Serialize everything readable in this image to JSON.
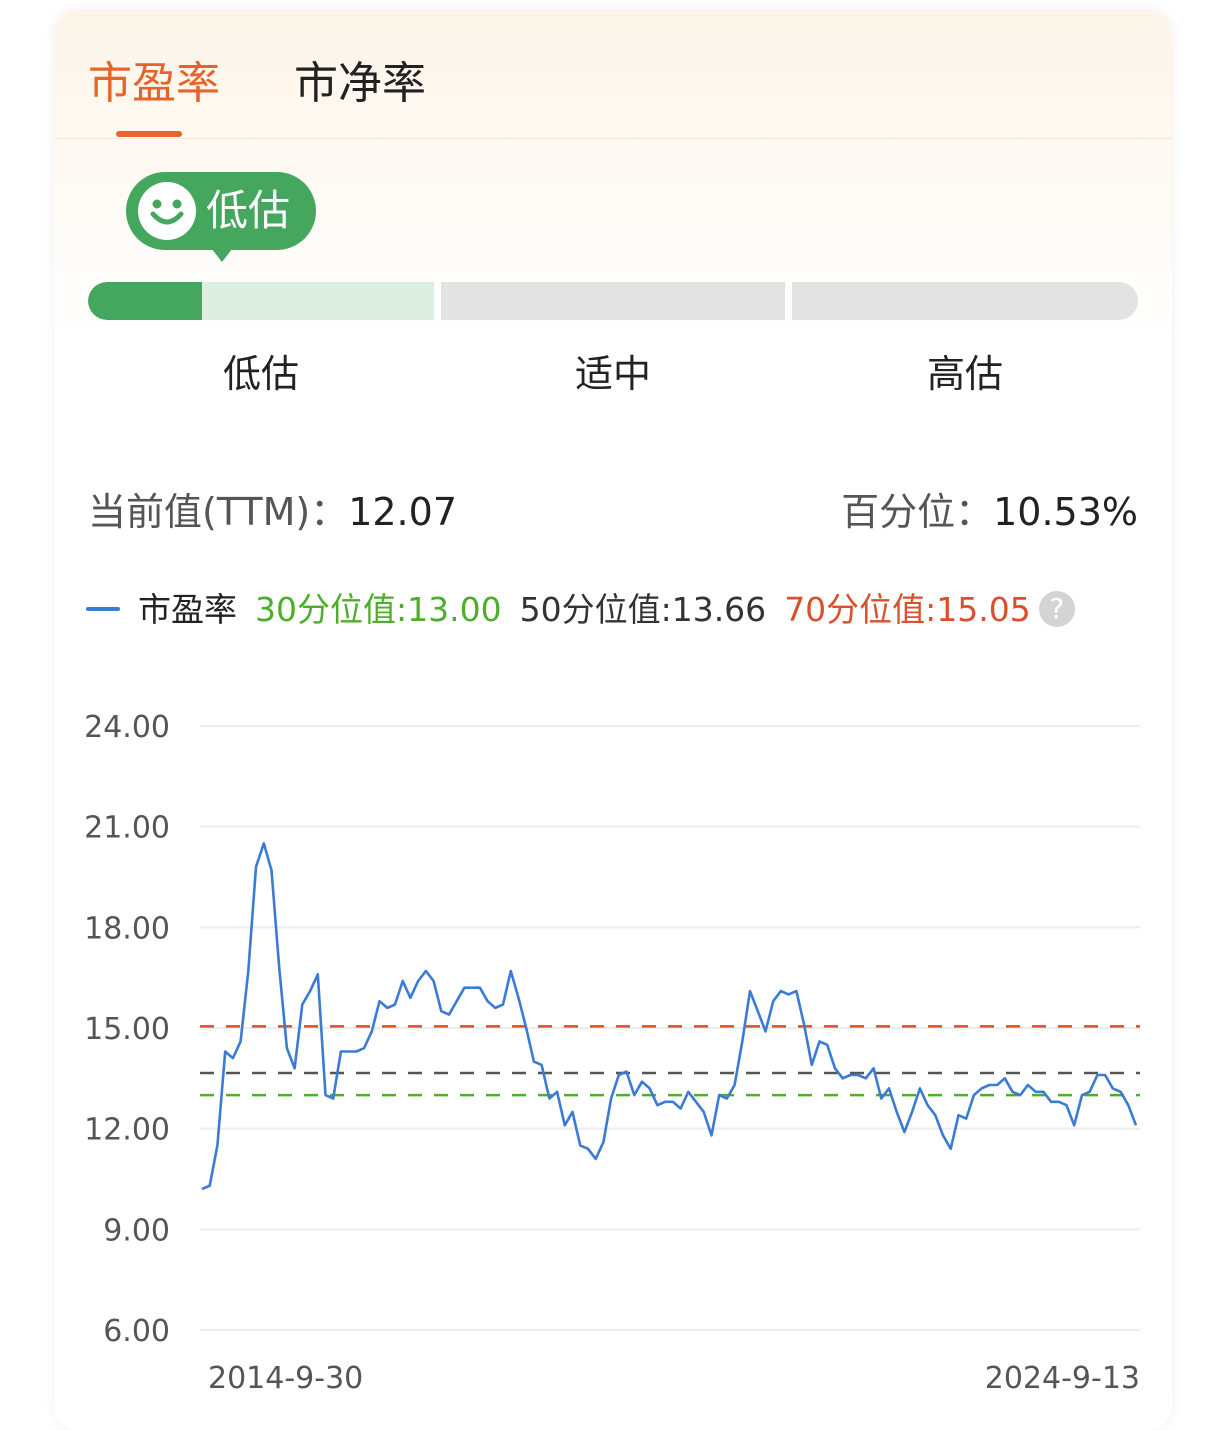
{
  "tabs": [
    {
      "label": "市盈率",
      "active": true
    },
    {
      "label": "市净率",
      "active": false
    }
  ],
  "valuation_badge": {
    "label": "低估",
    "icon": "smiley-icon"
  },
  "valuation_scale": {
    "segments": [
      "低估",
      "适中",
      "高估"
    ],
    "fill_fraction_of_first_segment": 0.33
  },
  "stats": {
    "current_label": "当前值(TTM)：",
    "current_value": "12.07",
    "percentile_label": "百分位：",
    "percentile_value": "10.53%"
  },
  "legend": {
    "series": "市盈率",
    "p30": "30分位值:13.00",
    "p50": "50分位值:13.66",
    "p70": "70分位值:15.05",
    "help": "?"
  },
  "colors": {
    "accent": "#e8632b",
    "green": "#45a75e",
    "series": "#3a7bd5",
    "p30": "#4caf2a",
    "p50": "#555555",
    "p70": "#d9502b"
  },
  "chart_data": {
    "type": "line",
    "title": "",
    "xlabel": "",
    "ylabel": "",
    "ylim": [
      6,
      24
    ],
    "yticks": [
      "24.00",
      "21.00",
      "18.00",
      "15.00",
      "12.00",
      "9.00",
      "6.00"
    ],
    "ytick_values": [
      24,
      21,
      18,
      15,
      12,
      9,
      6
    ],
    "xtick_labels": [
      "2014-9-30",
      "2024-9-13"
    ],
    "reference_lines": [
      {
        "name": "70分位值",
        "value": 15.05,
        "color": "#d9502b"
      },
      {
        "name": "50分位值",
        "value": 13.66,
        "color": "#555555"
      },
      {
        "name": "30分位值",
        "value": 13.0,
        "color": "#4caf2a"
      }
    ],
    "series": [
      {
        "name": "市盈率",
        "values": [
          10.2,
          10.3,
          11.5,
          14.3,
          14.1,
          14.6,
          16.7,
          19.8,
          20.5,
          19.7,
          16.8,
          14.4,
          13.8,
          15.7,
          16.1,
          16.6,
          13.0,
          12.9,
          14.3,
          14.3,
          14.3,
          14.4,
          14.9,
          15.8,
          15.6,
          15.7,
          16.4,
          15.9,
          16.4,
          16.7,
          16.4,
          15.5,
          15.4,
          15.8,
          16.2,
          16.2,
          16.2,
          15.8,
          15.6,
          15.7,
          16.7,
          15.9,
          15.0,
          14.0,
          13.9,
          12.9,
          13.1,
          12.1,
          12.5,
          11.5,
          11.4,
          11.1,
          11.6,
          12.9,
          13.6,
          13.7,
          13.0,
          13.4,
          13.2,
          12.7,
          12.8,
          12.8,
          12.6,
          13.1,
          12.8,
          12.5,
          11.8,
          13.0,
          12.9,
          13.3,
          14.6,
          16.1,
          15.5,
          14.9,
          15.8,
          16.1,
          16.0,
          16.1,
          15.1,
          13.9,
          14.6,
          14.5,
          13.8,
          13.5,
          13.6,
          13.6,
          13.5,
          13.8,
          12.9,
          13.2,
          12.5,
          11.9,
          12.5,
          13.2,
          12.7,
          12.4,
          11.8,
          11.4,
          12.4,
          12.3,
          13.0,
          13.2,
          13.3,
          13.3,
          13.5,
          13.1,
          13.0,
          13.3,
          13.1,
          13.1,
          12.8,
          12.8,
          12.7,
          12.1,
          13.0,
          13.1,
          13.6,
          13.6,
          13.2,
          13.1,
          12.7,
          12.1
        ]
      }
    ]
  }
}
